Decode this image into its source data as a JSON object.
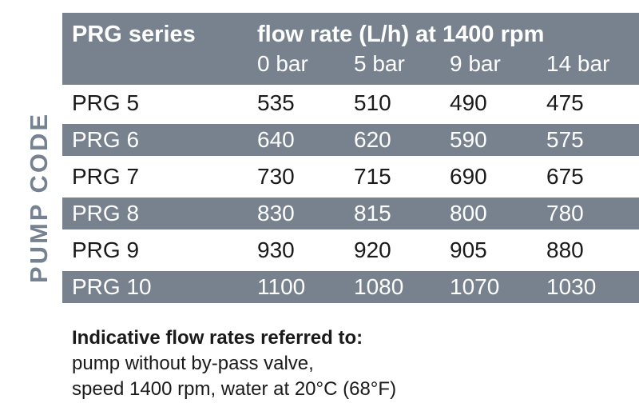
{
  "side_label": "PUMP CODE",
  "colors": {
    "band": "#77828E",
    "band_text": "#FFFFFF",
    "body_text": "#1A1A1A",
    "side_label_text": "#76828F",
    "background": "#FFFFFF"
  },
  "chart_data": {
    "type": "table",
    "row_header": "PRG series",
    "title": "flow rate (L/h) at 1400 rpm",
    "columns": [
      "0 bar",
      "5 bar",
      "9 bar",
      "14 bar"
    ],
    "rows": [
      {
        "label": "PRG 5",
        "values": [
          535,
          510,
          490,
          475
        ]
      },
      {
        "label": "PRG 6",
        "values": [
          640,
          620,
          590,
          575
        ]
      },
      {
        "label": "PRG 7",
        "values": [
          730,
          715,
          690,
          675
        ]
      },
      {
        "label": "PRG 8",
        "values": [
          830,
          815,
          800,
          780
        ]
      },
      {
        "label": "PRG 9",
        "values": [
          930,
          920,
          905,
          880
        ]
      },
      {
        "label": "PRG 10",
        "values": [
          1100,
          1080,
          1070,
          1030
        ]
      }
    ],
    "footnote_lines": [
      "Indicative flow rates referred to:",
      "pump without by-pass valve,",
      "speed 1400 rpm, water at 20°C (68°F)"
    ],
    "side_label": "PUMP CODE"
  }
}
